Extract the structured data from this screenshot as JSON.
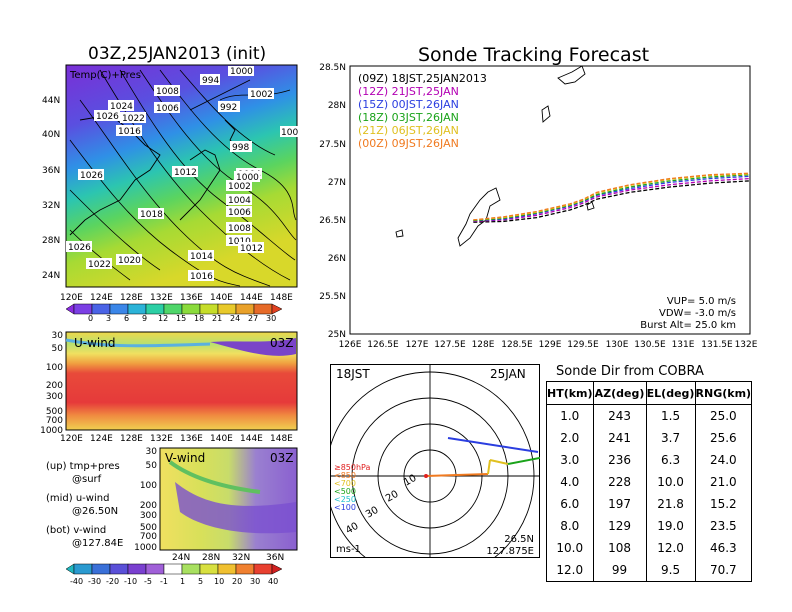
{
  "left_top": {
    "title": "03Z,25JAN2013 (init)",
    "label": "Temp(C)+Pres",
    "lat_ticks": [
      "44N",
      "40N",
      "36N",
      "32N",
      "28N",
      "24N"
    ],
    "lon_ticks": [
      "120E",
      "124E",
      "128E",
      "132E",
      "136E",
      "140E",
      "144E",
      "148E"
    ],
    "pressure_labels": [
      "1008",
      "1024",
      "1006",
      "1026",
      "1022",
      "1016",
      "1004",
      "1012",
      "1026",
      "1018",
      "1026",
      "1022",
      "1020",
      "1014",
      "1016",
      "1000",
      "1002",
      "1004",
      "1006",
      "1008",
      "1010",
      "1012",
      "998",
      "992",
      "1002",
      "994",
      "1000",
      "100"
    ],
    "colorbar_labels": [
      "0",
      "3",
      "6",
      "9",
      "12",
      "15",
      "18",
      "21",
      "24",
      "27",
      "30"
    ],
    "colorbar_colors": [
      "#8a2be2",
      "#7b3fe4",
      "#4a63e6",
      "#3b86e8",
      "#2bb3d8",
      "#2ccfa5",
      "#4fd66a",
      "#8adb3c",
      "#c6dd2a",
      "#e8c92a",
      "#e9a12a",
      "#e66a28"
    ]
  },
  "left_mid": {
    "label": "U-wind",
    "time": "03Z",
    "y_ticks": [
      "30",
      "50",
      "100",
      "200",
      "300",
      "500",
      "700",
      "1000"
    ],
    "lon_ticks": [
      "120E",
      "124E",
      "128E",
      "132E",
      "136E",
      "140E",
      "144E",
      "148E"
    ]
  },
  "left_bot": {
    "label": "V-wind",
    "time": "03Z",
    "y_ticks": [
      "30",
      "50",
      "100",
      "200",
      "300",
      "500",
      "700",
      "1000"
    ],
    "lat_ticks": [
      "24N",
      "28N",
      "32N",
      "36N"
    ],
    "colorbar_labels": [
      "-40",
      "-30",
      "-20",
      "-10",
      "-5",
      "-1",
      "1",
      "5",
      "10",
      "20",
      "30",
      "40"
    ]
  },
  "legend_notes": {
    "up": "(up) tmp+pres",
    "up2": "@surf",
    "mid": "(mid) u-wind",
    "mid2": "@26.50N",
    "bot": "(bot) v-wind",
    "bot2": "@127.84E"
  },
  "tracking": {
    "title": "Sonde Tracking Forecast",
    "lat_ticks": [
      "28.5N",
      "28N",
      "27.5N",
      "27N",
      "26.5N",
      "26N",
      "25.5N",
      "25N"
    ],
    "lon_ticks": [
      "126E",
      "126.5E",
      "127E",
      "127.5E",
      "128E",
      "128.5E",
      "129E",
      "129.5E",
      "130E",
      "130.5E",
      "131E",
      "131.5E",
      "132E"
    ],
    "legend": [
      {
        "text": "(09Z) 18JST,25JAN2013",
        "color": "#000000"
      },
      {
        "text": "(12Z) 21JST,25JAN",
        "color": "#b300b3"
      },
      {
        "text": "(15Z) 00JST,26JAN",
        "color": "#2b3ee0"
      },
      {
        "text": "(18Z) 03JST,26JAN",
        "color": "#1aa31a"
      },
      {
        "text": "(21Z) 06JST,26JAN",
        "color": "#e0c020"
      },
      {
        "text": "(00Z) 09JST,26JAN",
        "color": "#f07a20"
      }
    ],
    "vup": "VUP= 5.0 m/s",
    "vdw": "VDW= -3.0 m/s",
    "burst": "Burst Alt= 25.0 km"
  },
  "polar": {
    "time_label": "18JST",
    "date_label": "25JAN",
    "ring_labels": [
      "10",
      "20",
      "30",
      "40"
    ],
    "levels": [
      {
        "text": "≥850hPa",
        "color": "#e02020"
      },
      {
        "text": "<850",
        "color": "#f07a20"
      },
      {
        "text": "<700",
        "color": "#e0c020"
      },
      {
        "text": "<500",
        "color": "#1aa31a"
      },
      {
        "text": "<250",
        "color": "#20c0d0"
      },
      {
        "text": "<100",
        "color": "#2b3ee0"
      }
    ],
    "units": "ms-1",
    "lat": "26.5N",
    "lon": "127.875E"
  },
  "table": {
    "title": "Sonde Dir from COBRA",
    "headers": [
      "HT(km)",
      "AZ(deg)",
      "EL(deg)",
      "RNG(km)"
    ],
    "rows": [
      [
        "1.0",
        "243",
        "1.5",
        "25.0"
      ],
      [
        "2.0",
        "241",
        "3.7",
        "25.6"
      ],
      [
        "3.0",
        "236",
        "6.3",
        "24.0"
      ],
      [
        "4.0",
        "228",
        "10.0",
        "21.0"
      ],
      [
        "6.0",
        "197",
        "21.8",
        "15.2"
      ],
      [
        "8.0",
        "129",
        "19.0",
        "23.5"
      ],
      [
        "10.0",
        "108",
        "12.0",
        "46.3"
      ],
      [
        "12.0",
        "99",
        "9.5",
        "70.7"
      ]
    ]
  },
  "chart_data": [
    {
      "type": "line",
      "title": "Sonde Tracking Forecast",
      "xlabel": "",
      "ylabel": "",
      "xlim": [
        126,
        132
      ],
      "ylim": [
        25,
        28.5
      ],
      "series": [
        {
          "name": "(09Z) 18JST,25JAN2013",
          "x": [
            127.85,
            128.3,
            128.8,
            129.3,
            129.5,
            129.7,
            130.2,
            130.8,
            131.4,
            132.0
          ],
          "y": [
            26.46,
            26.47,
            26.52,
            26.62,
            26.68,
            26.76,
            26.85,
            26.92,
            26.97,
            27.0
          ]
        },
        {
          "name": "(12Z) 21JST,25JAN",
          "x": [
            127.85,
            128.3,
            128.8,
            129.3,
            129.5,
            129.7,
            130.2,
            130.8,
            131.4,
            132.0
          ],
          "y": [
            26.47,
            26.49,
            26.55,
            26.65,
            26.71,
            26.79,
            26.88,
            26.95,
            27.0,
            27.03
          ]
        },
        {
          "name": "(15Z) 00JST,26JAN",
          "x": [
            127.85,
            128.3,
            128.8,
            129.3,
            129.5,
            129.7,
            130.2,
            130.8,
            131.4,
            132.0
          ],
          "y": [
            26.48,
            26.5,
            26.57,
            26.67,
            26.73,
            26.81,
            26.9,
            26.98,
            27.03,
            27.06
          ]
        },
        {
          "name": "(18Z) 03JST,26JAN",
          "x": [
            127.85,
            128.3,
            128.8,
            129.3,
            129.5,
            129.7,
            130.2,
            130.8,
            131.4,
            132.0
          ],
          "y": [
            26.48,
            26.51,
            26.58,
            26.68,
            26.74,
            26.82,
            26.92,
            27.0,
            27.05,
            27.08
          ]
        },
        {
          "name": "(21Z) 06JST,26JAN",
          "x": [
            127.85,
            128.3,
            128.8,
            129.3,
            129.5,
            129.7,
            130.2,
            130.8,
            131.4,
            132.0
          ],
          "y": [
            26.49,
            26.52,
            26.59,
            26.69,
            26.75,
            26.84,
            26.94,
            27.02,
            27.07,
            27.09
          ]
        },
        {
          "name": "(00Z) 09JST,26JAN",
          "x": [
            127.85,
            128.3,
            128.8,
            129.3,
            129.5,
            129.7,
            130.2,
            130.8,
            131.4,
            132.0
          ],
          "y": [
            26.49,
            26.53,
            26.6,
            26.7,
            26.76,
            26.85,
            26.95,
            27.03,
            27.08,
            27.1
          ]
        }
      ]
    },
    {
      "type": "table",
      "title": "Sonde Dir from COBRA",
      "columns": [
        "HT(km)",
        "AZ(deg)",
        "EL(deg)",
        "RNG(km)"
      ],
      "rows": [
        [
          1.0,
          243,
          1.5,
          25.0
        ],
        [
          2.0,
          241,
          3.7,
          25.6
        ],
        [
          3.0,
          236,
          6.3,
          24.0
        ],
        [
          4.0,
          228,
          10.0,
          21.0
        ],
        [
          6.0,
          197,
          21.8,
          15.2
        ],
        [
          8.0,
          129,
          19.0,
          23.5
        ],
        [
          10.0,
          108,
          12.0,
          46.3
        ],
        [
          12.0,
          99,
          9.5,
          70.7
        ]
      ]
    }
  ]
}
